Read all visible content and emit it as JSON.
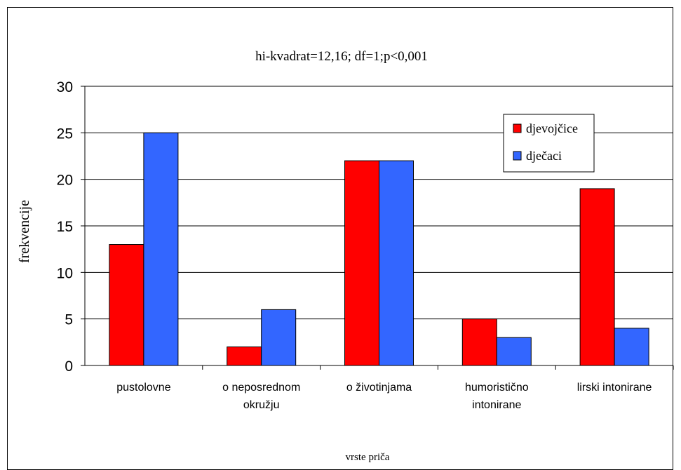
{
  "chart_data": {
    "type": "bar",
    "title": "hi-kvadrat=12,16; df=1;p<0,001",
    "xlabel": "vrste priča",
    "ylabel": "frekvencije",
    "ylim": [
      0,
      30
    ],
    "yticks": [
      "0",
      "5",
      "10",
      "15",
      "20",
      "25",
      "30"
    ],
    "grid": true,
    "legend_position": "top-right",
    "categories": [
      [
        "pustolovne"
      ],
      [
        "o neposrednom",
        "okružju"
      ],
      [
        "o životinjama"
      ],
      [
        "humoristično",
        "intonirane"
      ],
      [
        "lirski intonirane"
      ]
    ],
    "series": [
      {
        "name": "djevojčice",
        "color": "#ff0000",
        "values": [
          13,
          2,
          22,
          5,
          19
        ]
      },
      {
        "name": "dječaci",
        "color": "#3366ff",
        "values": [
          25,
          6,
          22,
          3,
          4
        ]
      }
    ]
  }
}
